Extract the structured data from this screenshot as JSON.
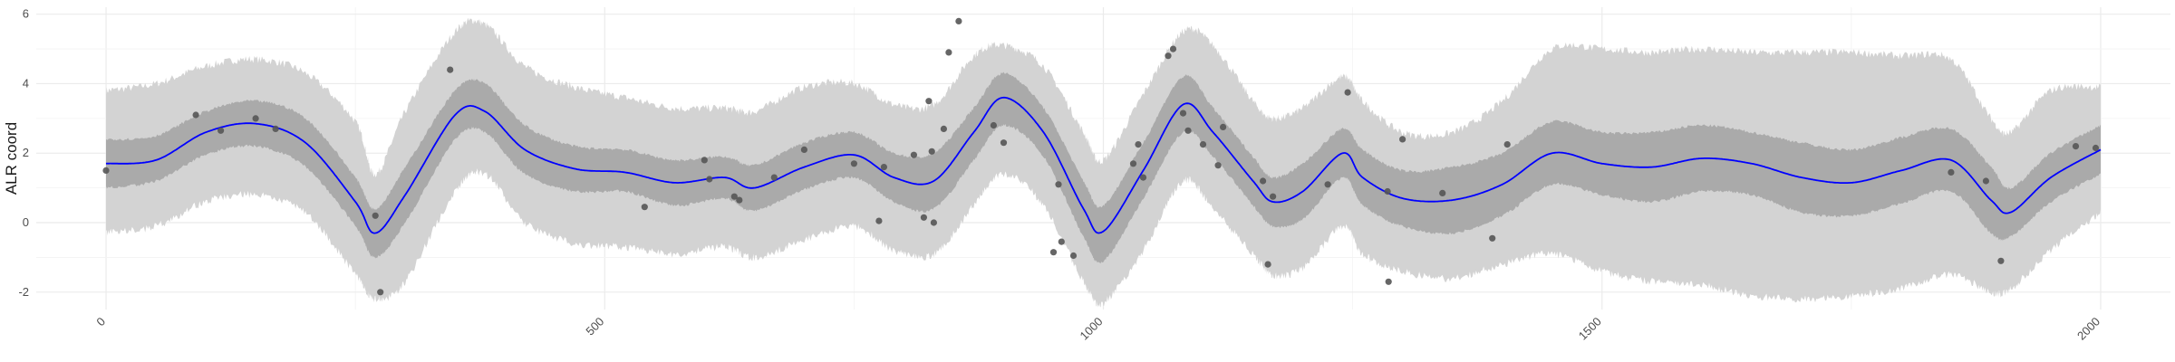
{
  "chart_data": {
    "type": "line",
    "title": "",
    "xlabel": "",
    "ylabel": "ALR coord",
    "xlim": [
      -70,
      2070
    ],
    "ylim": [
      -2.5,
      6.2
    ],
    "x_ticks": [
      0,
      500,
      1000,
      1500,
      2000
    ],
    "y_ticks": [
      -2,
      0,
      2,
      4,
      6
    ],
    "grid": true,
    "legend": "none",
    "colors": {
      "mean_line": "#0000ff",
      "inner_band": "#aaaaaa",
      "outer_band": "#d3d3d3",
      "points": "#555555",
      "grid": "#ebebeb"
    },
    "x": [
      0,
      50,
      100,
      150,
      200,
      250,
      270,
      300,
      350,
      380,
      420,
      470,
      520,
      570,
      620,
      650,
      700,
      750,
      790,
      830,
      870,
      900,
      940,
      980,
      1000,
      1040,
      1080,
      1110,
      1150,
      1170,
      1200,
      1240,
      1260,
      1300,
      1350,
      1400,
      1450,
      1500,
      1550,
      1600,
      1650,
      1700,
      1750,
      1800,
      1850,
      1890,
      1910,
      1950,
      2000
    ],
    "series": [
      {
        "role": "mean",
        "values": [
          1.7,
          1.8,
          2.6,
          2.85,
          2.3,
          0.6,
          -0.3,
          0.8,
          3.1,
          3.2,
          2.1,
          1.55,
          1.45,
          1.15,
          1.3,
          1.0,
          1.6,
          1.95,
          1.3,
          1.2,
          2.6,
          3.6,
          2.6,
          0.4,
          -0.25,
          1.5,
          3.4,
          2.6,
          1.2,
          0.6,
          0.9,
          2.0,
          1.3,
          0.7,
          0.65,
          1.1,
          2.0,
          1.7,
          1.6,
          1.85,
          1.7,
          1.3,
          1.15,
          1.5,
          1.8,
          0.65,
          0.3,
          1.3,
          2.1
        ]
      },
      {
        "role": "inner_band_lower",
        "values": [
          1.0,
          1.2,
          1.95,
          2.2,
          1.6,
          -0.1,
          -1.0,
          0.0,
          2.4,
          2.6,
          1.4,
          0.9,
          0.9,
          0.5,
          0.7,
          0.35,
          0.95,
          1.3,
          0.6,
          0.4,
          1.8,
          2.8,
          1.9,
          -0.4,
          -1.1,
          0.7,
          2.6,
          1.9,
          0.5,
          -0.1,
          0.1,
          1.3,
          0.5,
          -0.1,
          -0.3,
          0.2,
          1.1,
          0.8,
          0.6,
          0.9,
          0.8,
          0.3,
          0.2,
          0.55,
          0.9,
          -0.3,
          -0.4,
          0.6,
          1.4
        ]
      },
      {
        "role": "inner_band_upper",
        "values": [
          2.4,
          2.5,
          3.2,
          3.5,
          3.0,
          1.3,
          0.4,
          1.6,
          3.8,
          4.0,
          2.8,
          2.2,
          2.1,
          1.8,
          1.9,
          1.65,
          2.3,
          2.6,
          2.0,
          2.0,
          3.3,
          4.3,
          3.3,
          1.2,
          0.5,
          2.3,
          4.2,
          3.3,
          1.9,
          1.3,
          1.7,
          2.7,
          2.1,
          1.5,
          1.6,
          2.0,
          2.9,
          2.6,
          2.6,
          2.8,
          2.6,
          2.3,
          2.1,
          2.45,
          2.7,
          1.6,
          1.0,
          2.0,
          2.8
        ]
      },
      {
        "role": "outer_band_lower",
        "values": [
          -0.3,
          -0.1,
          0.6,
          0.8,
          0.3,
          -1.5,
          -2.2,
          -1.7,
          0.9,
          1.4,
          0.0,
          -0.6,
          -0.7,
          -0.9,
          -0.7,
          -1.0,
          -0.5,
          -0.1,
          -0.8,
          -0.9,
          0.5,
          1.4,
          0.5,
          -1.7,
          -2.3,
          -0.8,
          1.2,
          0.4,
          -0.9,
          -1.5,
          -1.3,
          -0.1,
          -0.9,
          -1.4,
          -1.6,
          -1.2,
          -0.9,
          -1.4,
          -1.7,
          -1.8,
          -2.1,
          -2.2,
          -2.1,
          -1.9,
          -1.5,
          -2.0,
          -1.9,
          -0.8,
          0.3
        ]
      },
      {
        "role": "outer_band_upper",
        "values": [
          3.8,
          4.0,
          4.5,
          4.7,
          4.3,
          2.9,
          1.4,
          3.2,
          5.5,
          5.7,
          4.5,
          3.9,
          3.6,
          3.3,
          3.3,
          3.2,
          3.9,
          4.0,
          3.4,
          3.4,
          4.8,
          5.1,
          4.5,
          2.6,
          1.8,
          3.7,
          5.5,
          5.1,
          3.5,
          3.0,
          3.3,
          4.2,
          3.5,
          2.6,
          2.6,
          3.5,
          5.0,
          5.0,
          4.9,
          5.0,
          4.9,
          4.9,
          4.9,
          4.8,
          4.7,
          3.0,
          2.6,
          3.8,
          3.9
        ]
      }
    ],
    "points": [
      [
        0,
        1.5
      ],
      [
        90,
        3.1
      ],
      [
        115,
        2.65
      ],
      [
        150,
        3.0
      ],
      [
        170,
        2.7
      ],
      [
        270,
        0.2
      ],
      [
        275,
        -2.0
      ],
      [
        345,
        4.4
      ],
      [
        540,
        0.45
      ],
      [
        600,
        1.8
      ],
      [
        605,
        1.25
      ],
      [
        630,
        0.75
      ],
      [
        635,
        0.65
      ],
      [
        670,
        1.3
      ],
      [
        700,
        2.1
      ],
      [
        750,
        1.7
      ],
      [
        775,
        0.05
      ],
      [
        780,
        1.6
      ],
      [
        810,
        1.95
      ],
      [
        820,
        0.15
      ],
      [
        825,
        3.5
      ],
      [
        828,
        2.05
      ],
      [
        830,
        0.0
      ],
      [
        840,
        2.7
      ],
      [
        845,
        4.9
      ],
      [
        855,
        5.8
      ],
      [
        890,
        2.8
      ],
      [
        900,
        2.3
      ],
      [
        950,
        -0.85
      ],
      [
        955,
        1.1
      ],
      [
        958,
        -0.55
      ],
      [
        970,
        -0.95
      ],
      [
        1030,
        1.7
      ],
      [
        1035,
        2.25
      ],
      [
        1040,
        1.3
      ],
      [
        1065,
        4.8
      ],
      [
        1070,
        5.0
      ],
      [
        1080,
        3.15
      ],
      [
        1085,
        2.65
      ],
      [
        1100,
        2.25
      ],
      [
        1115,
        1.65
      ],
      [
        1120,
        2.75
      ],
      [
        1160,
        1.2
      ],
      [
        1165,
        -1.2
      ],
      [
        1170,
        0.75
      ],
      [
        1225,
        1.1
      ],
      [
        1245,
        3.75
      ],
      [
        1285,
        0.9
      ],
      [
        1286,
        -1.7
      ],
      [
        1300,
        2.4
      ],
      [
        1340,
        0.85
      ],
      [
        1390,
        -0.45
      ],
      [
        1405,
        2.25
      ],
      [
        1850,
        1.45
      ],
      [
        1885,
        1.2
      ],
      [
        1900,
        -1.1
      ],
      [
        1975,
        2.2
      ],
      [
        1995,
        2.15
      ]
    ]
  }
}
